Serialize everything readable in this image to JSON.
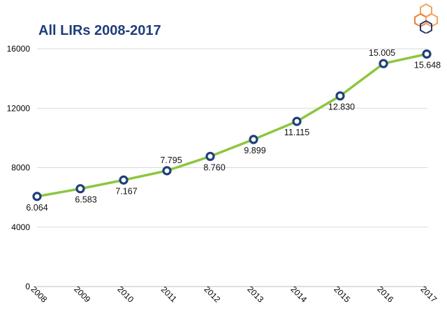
{
  "header": {
    "title": "All LIRs 2008-2017"
  },
  "logo": {
    "icon": "hexagon-cluster-logo",
    "colors": [
      "#f4a460",
      "#e8833a",
      "#2b3a6b"
    ]
  },
  "colors": {
    "line": "#8dc63f",
    "marker_edge": "#1f3f7a",
    "marker_fill": "#ffffff",
    "grid": "#d9d9d9",
    "title": "#1f3f7a"
  },
  "chart_data": {
    "type": "line",
    "title": "All LIRs 2008-2017",
    "xlabel": "",
    "ylabel": "",
    "categories": [
      "2008",
      "2009",
      "2010",
      "2011",
      "2012",
      "2013",
      "2014",
      "2015",
      "2016",
      "2017"
    ],
    "values": [
      6064,
      6583,
      7167,
      7795,
      8760,
      9899,
      11115,
      12830,
      15005,
      15648
    ],
    "data_labels": [
      "6.064",
      "6.583",
      "7.167",
      "7.795",
      "8.760",
      "9.899",
      "11.115",
      "12.830",
      "15.005",
      "15.648"
    ],
    "ylim": [
      0,
      16000
    ],
    "yticks": [
      0,
      4000,
      8000,
      12000,
      16000
    ],
    "grid": true,
    "legend": "none"
  }
}
